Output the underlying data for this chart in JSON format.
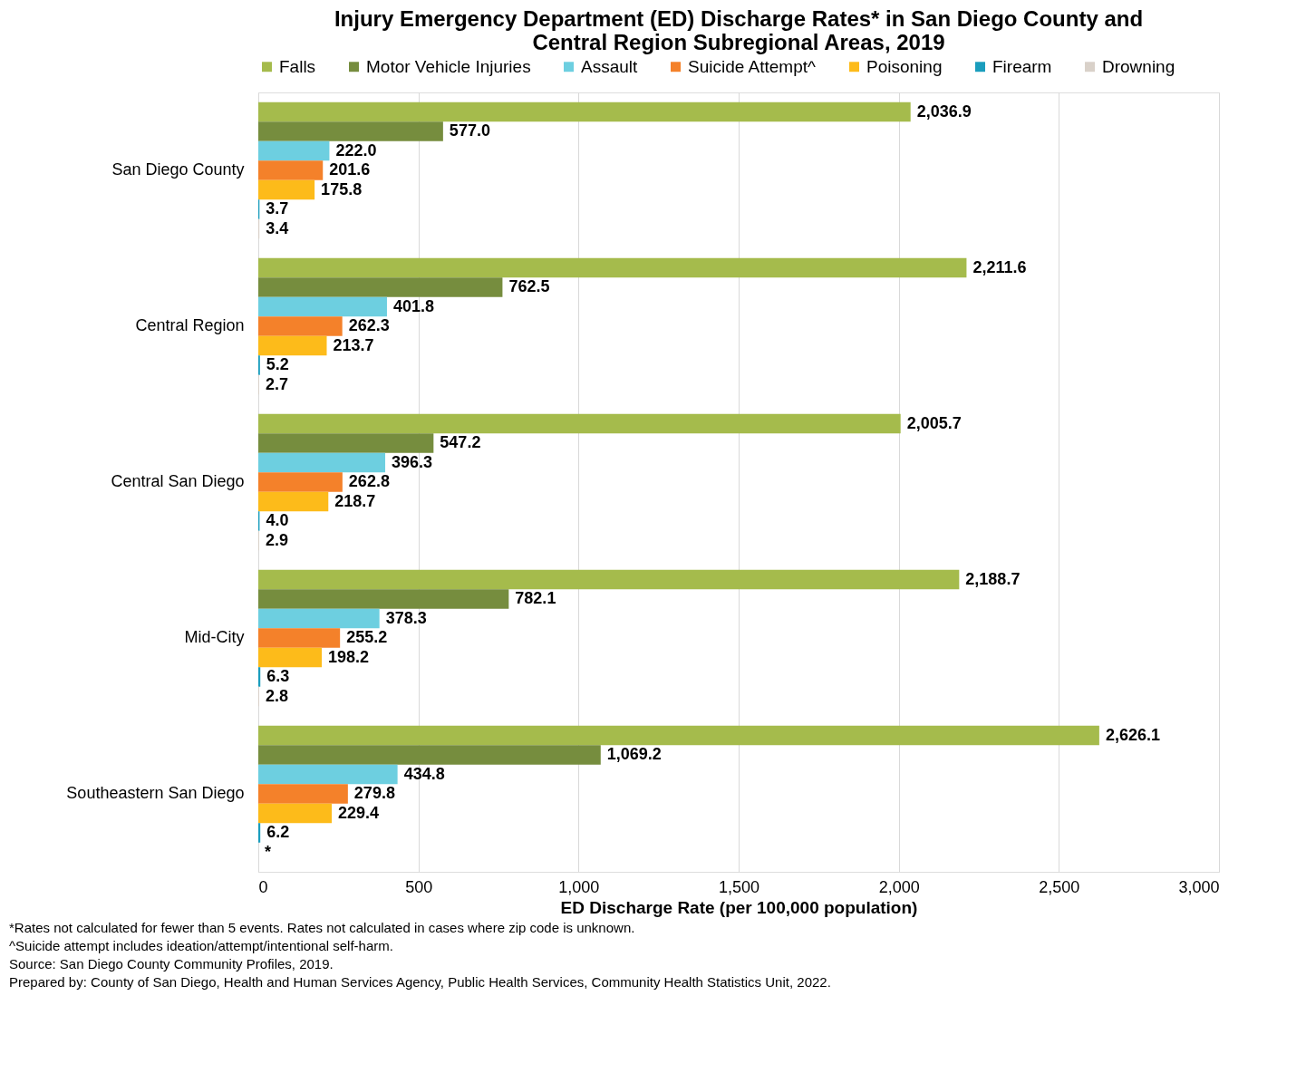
{
  "chart_data": {
    "type": "bar",
    "orientation": "horizontal",
    "title": [
      "Injury Emergency Department (ED) Discharge Rates* in San Diego County and",
      "Central Region Subregional Areas, 2019"
    ],
    "xlabel": "ED Discharge Rate (per 100,000 population)",
    "categories": [
      "San Diego County",
      "Central Region",
      "Central San Diego",
      "Mid-City",
      "Southeastern San Diego"
    ],
    "series": [
      {
        "name": "Falls",
        "color": "#a5bb4c",
        "values": [
          2036.9,
          2211.6,
          2005.7,
          2188.7,
          2626.1
        ],
        "value_labels": [
          "2,036.9",
          "2,211.6",
          "2,005.7",
          "2,188.7",
          "2,626.1"
        ]
      },
      {
        "name": "Motor Vehicle Injuries",
        "color": "#768d3e",
        "values": [
          577.0,
          762.5,
          547.2,
          782.1,
          1069.2
        ],
        "value_labels": [
          "577.0",
          "762.5",
          "547.2",
          "782.1",
          "1,069.2"
        ]
      },
      {
        "name": "Assault",
        "color": "#6dcfe0",
        "values": [
          222.0,
          401.8,
          396.3,
          378.3,
          434.8
        ],
        "value_labels": [
          "222.0",
          "401.8",
          "396.3",
          "378.3",
          "434.8"
        ]
      },
      {
        "name": "Suicide Attempt^",
        "color": "#f4812a",
        "values": [
          201.6,
          262.3,
          262.8,
          255.2,
          279.8
        ],
        "value_labels": [
          "201.6",
          "262.3",
          "262.8",
          "255.2",
          "279.8"
        ]
      },
      {
        "name": "Poisoning",
        "color": "#fdbb1a",
        "values": [
          175.8,
          213.7,
          218.7,
          198.2,
          229.4
        ],
        "value_labels": [
          "175.8",
          "213.7",
          "218.7",
          "198.2",
          "229.4"
        ]
      },
      {
        "name": "Firearm",
        "color": "#1a9dbd",
        "values": [
          3.7,
          5.2,
          4.0,
          6.3,
          6.2
        ],
        "value_labels": [
          "3.7",
          "5.2",
          "4.0",
          "6.3",
          "6.2"
        ]
      },
      {
        "name": "Drowning",
        "color": "#d9d1c9",
        "values": [
          3.4,
          2.7,
          2.9,
          2.8,
          null
        ],
        "value_labels": [
          "3.4",
          "2.7",
          "2.9",
          "2.8",
          "*"
        ]
      }
    ],
    "xlim": [
      0,
      3000
    ],
    "xticks": [
      0,
      500,
      {
        "value": 1000,
        "label": "1,000"
      },
      {
        "value": 1500,
        "label": "1,500"
      },
      {
        "value": 2000,
        "label": "2,000"
      },
      {
        "value": 2500,
        "label": "2,500"
      },
      {
        "value": 3000,
        "label": "3,000"
      }
    ],
    "grid": "x",
    "legend": "top",
    "annotations": [
      "*Rates not calculated for fewer than 5 events. Rates not calculated in cases where zip code is unknown.",
      "^Suicide attempt includes ideation/attempt/intentional self-harm.",
      "Source: San Diego County Community Profiles, 2019.",
      "Prepared by: County of San Diego, Health and Human Services Agency, Public Health Services, Community Health Statistics Unit, 2022."
    ]
  }
}
